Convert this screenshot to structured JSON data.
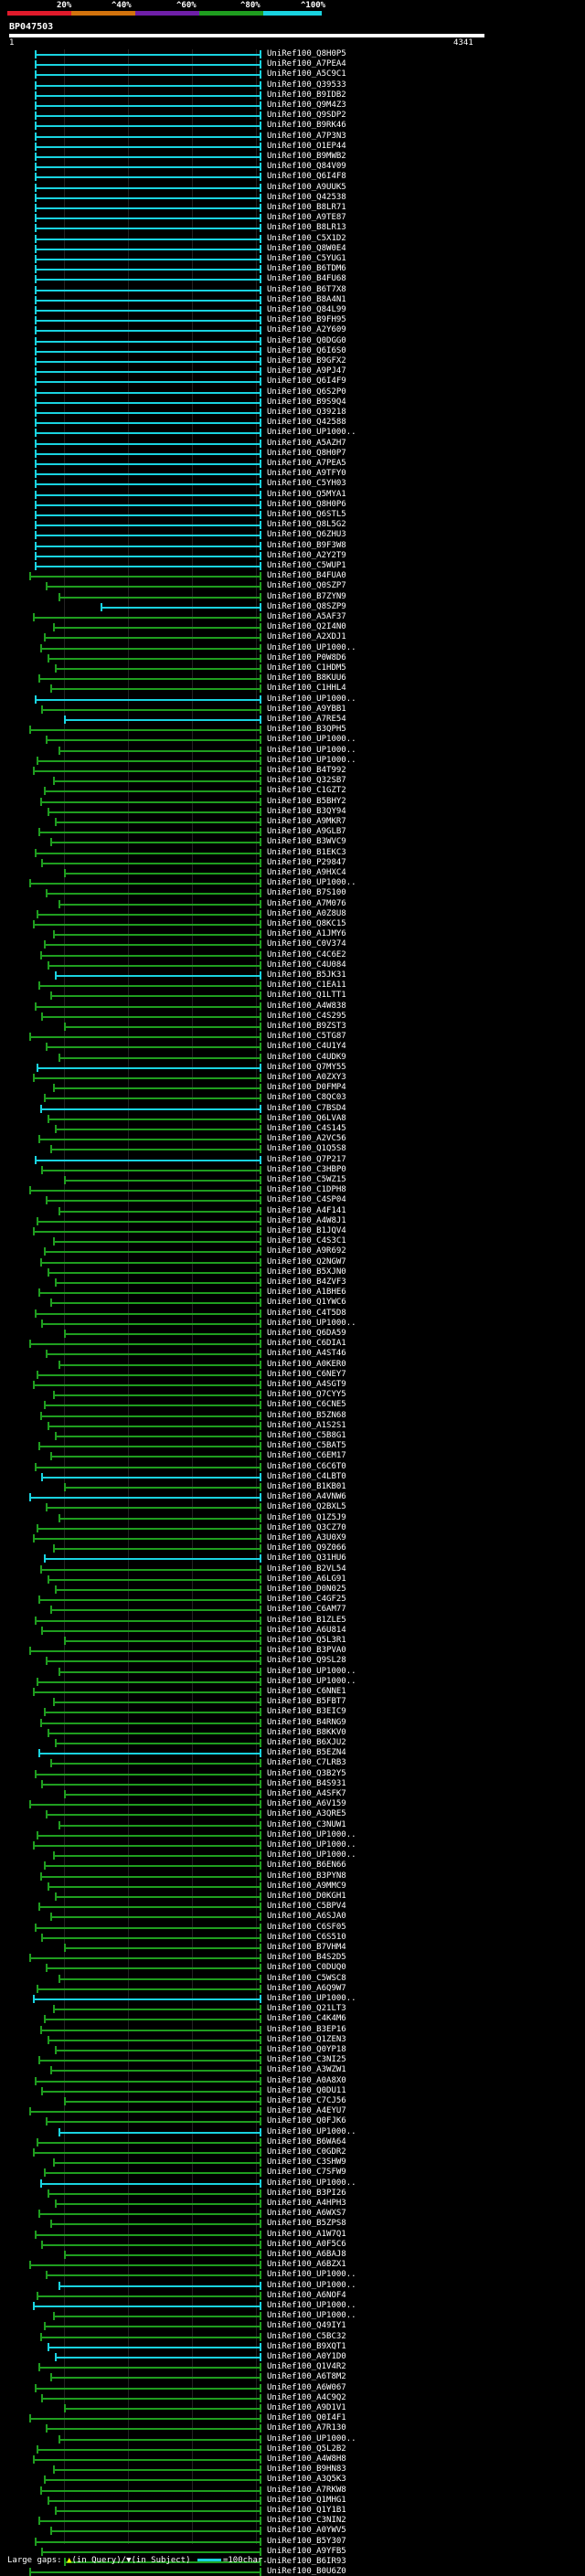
{
  "legend": {
    "labels": [
      "20%",
      "^40%",
      "^60%",
      "^80%",
      "^100%"
    ],
    "colors": [
      "#e01a2b",
      "#d2730d",
      "#6f1fa8",
      "#1f9e1f",
      "#19d3e0"
    ]
  },
  "query": {
    "id": "BP047503",
    "start": "1",
    "end": "4341"
  },
  "hits": [
    {
      "id": "UniRef100_Q8H0P5",
      "color": "#19d3e0"
    },
    {
      "id": "UniRef100_A7PEA4",
      "color": "#19d3e0"
    },
    {
      "id": "UniRef100_A5C9C1",
      "color": "#19d3e0"
    },
    {
      "id": "UniRef100_Q39533",
      "color": "#19d3e0"
    },
    {
      "id": "UniRef100_B9IDB2",
      "color": "#19d3e0"
    },
    {
      "id": "UniRef100_Q9M4Z3",
      "color": "#19d3e0"
    },
    {
      "id": "UniRef100_Q9SDP2",
      "color": "#19d3e0"
    },
    {
      "id": "UniRef100_B9RK46",
      "color": "#19d3e0"
    },
    {
      "id": "UniRef100_A7P3N3",
      "color": "#19d3e0"
    },
    {
      "id": "UniRef100_O1EP44",
      "color": "#19d3e0"
    },
    {
      "id": "UniRef100_B9MWB2",
      "color": "#19d3e0"
    },
    {
      "id": "UniRef100_Q84V09",
      "color": "#19d3e0"
    },
    {
      "id": "UniRef100_Q6I4F8",
      "color": "#19d3e0"
    },
    {
      "id": "UniRef100_A9UUK5",
      "color": "#19d3e0"
    },
    {
      "id": "UniRef100_Q42538",
      "color": "#19d3e0"
    },
    {
      "id": "UniRef100_B8LR71",
      "color": "#19d3e0"
    },
    {
      "id": "UniRef100_A9TE87",
      "color": "#19d3e0"
    },
    {
      "id": "UniRef100_B8LR13",
      "color": "#19d3e0"
    },
    {
      "id": "UniRef100_C5X1D2",
      "color": "#19d3e0"
    },
    {
      "id": "UniRef100_Q8W0E4",
      "color": "#19d3e0"
    },
    {
      "id": "UniRef100_C5YUG1",
      "color": "#19d3e0"
    },
    {
      "id": "UniRef100_B6TDM6",
      "color": "#19d3e0"
    },
    {
      "id": "UniRef100_B4FU68",
      "color": "#19d3e0"
    },
    {
      "id": "UniRef100_B6T7X8",
      "color": "#19d3e0"
    },
    {
      "id": "UniRef100_B8A4N1",
      "color": "#19d3e0"
    },
    {
      "id": "UniRef100_Q84L99",
      "color": "#19d3e0"
    },
    {
      "id": "UniRef100_B9FH95",
      "color": "#19d3e0"
    },
    {
      "id": "UniRef100_A2Y609",
      "color": "#19d3e0"
    },
    {
      "id": "UniRef100_Q0DGG0",
      "color": "#19d3e0"
    },
    {
      "id": "UniRef100_Q6I6S0",
      "color": "#19d3e0"
    },
    {
      "id": "UniRef100_B9GFX2",
      "color": "#19d3e0"
    },
    {
      "id": "UniRef100_A9PJ47",
      "color": "#19d3e0"
    },
    {
      "id": "UniRef100_Q6I4F9",
      "color": "#19d3e0"
    },
    {
      "id": "UniRef100_Q6S2P0",
      "color": "#19d3e0"
    },
    {
      "id": "UniRef100_B9S9Q4",
      "color": "#19d3e0"
    },
    {
      "id": "UniRef100_Q39218",
      "color": "#19d3e0"
    },
    {
      "id": "UniRef100_Q42588",
      "color": "#19d3e0"
    },
    {
      "id": "UniRef100_UP1000..",
      "color": "#19d3e0"
    },
    {
      "id": "UniRef100_A5AZH7",
      "color": "#19d3e0"
    },
    {
      "id": "UniRef100_Q8H0P7",
      "color": "#19d3e0"
    },
    {
      "id": "UniRef100_A7PEA5",
      "color": "#19d3e0"
    },
    {
      "id": "UniRef100_A9TFY0",
      "color": "#19d3e0"
    },
    {
      "id": "UniRef100_C5YH03",
      "color": "#19d3e0"
    },
    {
      "id": "UniRef100_Q5MYA1",
      "color": "#19d3e0"
    },
    {
      "id": "UniRef100_Q8H0P6",
      "color": "#19d3e0"
    },
    {
      "id": "UniRef100_Q6STL5",
      "color": "#19d3e0"
    },
    {
      "id": "UniRef100_Q8L5G2",
      "color": "#19d3e0"
    },
    {
      "id": "UniRef100_Q6ZHU3",
      "color": "#19d3e0"
    },
    {
      "id": "UniRef100_B9F3W8",
      "color": "#19d3e0"
    },
    {
      "id": "UniRef100_A2Y2T9",
      "color": "#19d3e0"
    },
    {
      "id": "UniRef100_C5WUP1",
      "color": "#19d3e0"
    },
    {
      "id": "UniRef100_B4FUA0",
      "color": "#1f9e1f"
    },
    {
      "id": "UniRef100_Q0SZP7",
      "color": "#1f9e1f"
    },
    {
      "id": "UniRef100_B7ZYN9",
      "color": "#1f9e1f"
    },
    {
      "id": "UniRef100_Q8SZP9",
      "color": "#19d3e0"
    },
    {
      "id": "UniRef100_A5AF37",
      "color": "#1f9e1f"
    },
    {
      "id": "UniRef100_Q2I4N0",
      "color": "#1f9e1f"
    },
    {
      "id": "UniRef100_A2XDJ1",
      "color": "#1f9e1f"
    },
    {
      "id": "UniRef100_UP1000..",
      "color": "#1f9e1f"
    },
    {
      "id": "UniRef100_P0W8D6",
      "color": "#1f9e1f"
    },
    {
      "id": "UniRef100_C1HDM5",
      "color": "#1f9e1f"
    },
    {
      "id": "UniRef100_B8KUU6",
      "color": "#1f9e1f"
    },
    {
      "id": "UniRef100_C1HHL4",
      "color": "#1f9e1f"
    },
    {
      "id": "UniRef100_UP1000..",
      "color": "#19d3e0"
    },
    {
      "id": "UniRef100_A9YBB1",
      "color": "#1f9e1f"
    },
    {
      "id": "UniRef100_A7RE54",
      "color": "#19d3e0"
    },
    {
      "id": "UniRef100_B3QPH5",
      "color": "#1f9e1f"
    },
    {
      "id": "UniRef100_UP1000..",
      "color": "#1f9e1f"
    },
    {
      "id": "UniRef100_UP1000..",
      "color": "#1f9e1f"
    },
    {
      "id": "UniRef100_UP1000..",
      "color": "#1f9e1f"
    },
    {
      "id": "UniRef100_B4T992",
      "color": "#1f9e1f"
    },
    {
      "id": "UniRef100_Q32SB7",
      "color": "#1f9e1f"
    },
    {
      "id": "UniRef100_C1GZT2",
      "color": "#1f9e1f"
    },
    {
      "id": "UniRef100_B5BHY2",
      "color": "#1f9e1f"
    },
    {
      "id": "UniRef100_B3QY94",
      "color": "#1f9e1f"
    },
    {
      "id": "UniRef100_A9MKR7",
      "color": "#1f9e1f"
    },
    {
      "id": "UniRef100_A9GLB7",
      "color": "#1f9e1f"
    },
    {
      "id": "UniRef100_B3WVC9",
      "color": "#1f9e1f"
    },
    {
      "id": "UniRef100_B1EKC3",
      "color": "#1f9e1f"
    },
    {
      "id": "UniRef100_P29847",
      "color": "#1f9e1f"
    },
    {
      "id": "UniRef100_A9HXC4",
      "color": "#1f9e1f"
    },
    {
      "id": "UniRef100_UP1000..",
      "color": "#1f9e1f"
    },
    {
      "id": "UniRef100_B7S100",
      "color": "#1f9e1f"
    },
    {
      "id": "UniRef100_A7M076",
      "color": "#1f9e1f"
    },
    {
      "id": "UniRef100_A0Z8U8",
      "color": "#1f9e1f"
    },
    {
      "id": "UniRef100_Q8KC15",
      "color": "#1f9e1f"
    },
    {
      "id": "UniRef100_A1JMY6",
      "color": "#1f9e1f"
    },
    {
      "id": "UniRef100_C0V374",
      "color": "#1f9e1f"
    },
    {
      "id": "UniRef100_C4C6E2",
      "color": "#1f9e1f"
    },
    {
      "id": "UniRef100_C4U084",
      "color": "#1f9e1f"
    },
    {
      "id": "UniRef100_B5JK31",
      "color": "#19d3e0"
    },
    {
      "id": "UniRef100_C1EA11",
      "color": "#1f9e1f"
    },
    {
      "id": "UniRef100_Q1LTT1",
      "color": "#1f9e1f"
    },
    {
      "id": "UniRef100_A4W838",
      "color": "#1f9e1f"
    },
    {
      "id": "UniRef100_C4S295",
      "color": "#1f9e1f"
    },
    {
      "id": "UniRef100_B9ZST3",
      "color": "#1f9e1f"
    },
    {
      "id": "UniRef100_C5TG87",
      "color": "#1f9e1f"
    },
    {
      "id": "UniRef100_C4U1Y4",
      "color": "#1f9e1f"
    },
    {
      "id": "UniRef100_C4UDK9",
      "color": "#1f9e1f"
    },
    {
      "id": "UniRef100_Q7MY55",
      "color": "#19d3e0"
    },
    {
      "id": "UniRef100_A0ZXY3",
      "color": "#1f9e1f"
    },
    {
      "id": "UniRef100_D0FMP4",
      "color": "#1f9e1f"
    },
    {
      "id": "UniRef100_C8QC03",
      "color": "#1f9e1f"
    },
    {
      "id": "UniRef100_C7BSD4",
      "color": "#19d3e0"
    },
    {
      "id": "UniRef100_Q6LVA8",
      "color": "#1f9e1f"
    },
    {
      "id": "UniRef100_C4S145",
      "color": "#1f9e1f"
    },
    {
      "id": "UniRef100_A2VC56",
      "color": "#1f9e1f"
    },
    {
      "id": "UniRef100_Q1Q5S8",
      "color": "#1f9e1f"
    },
    {
      "id": "UniRef100_Q7P217",
      "color": "#19d3e0"
    },
    {
      "id": "UniRef100_C3HBP0",
      "color": "#1f9e1f"
    },
    {
      "id": "UniRef100_C5WZ15",
      "color": "#1f9e1f"
    },
    {
      "id": "UniRef100_C1DPH8",
      "color": "#1f9e1f"
    },
    {
      "id": "UniRef100_C4SP04",
      "color": "#1f9e1f"
    },
    {
      "id": "UniRef100_A4F141",
      "color": "#1f9e1f"
    },
    {
      "id": "UniRef100_A4W8J1",
      "color": "#1f9e1f"
    },
    {
      "id": "UniRef100_B1JQV4",
      "color": "#1f9e1f"
    },
    {
      "id": "UniRef100_C4S3C1",
      "color": "#1f9e1f"
    },
    {
      "id": "UniRef100_A9R692",
      "color": "#1f9e1f"
    },
    {
      "id": "UniRef100_Q2NGW7",
      "color": "#1f9e1f"
    },
    {
      "id": "UniRef100_B5XJN0",
      "color": "#1f9e1f"
    },
    {
      "id": "UniRef100_B4ZVF3",
      "color": "#1f9e1f"
    },
    {
      "id": "UniRef100_A1BHE6",
      "color": "#1f9e1f"
    },
    {
      "id": "UniRef100_Q1YWC6",
      "color": "#1f9e1f"
    },
    {
      "id": "UniRef100_C4T5D8",
      "color": "#1f9e1f"
    },
    {
      "id": "UniRef100_UP1000..",
      "color": "#1f9e1f"
    },
    {
      "id": "UniRef100_Q6DA59",
      "color": "#1f9e1f"
    },
    {
      "id": "UniRef100_C6DIA1",
      "color": "#1f9e1f"
    },
    {
      "id": "UniRef100_A4ST46",
      "color": "#1f9e1f"
    },
    {
      "id": "UniRef100_A0KER0",
      "color": "#1f9e1f"
    },
    {
      "id": "UniRef100_C6NEY7",
      "color": "#1f9e1f"
    },
    {
      "id": "UniRef100_A4SGT9",
      "color": "#1f9e1f"
    },
    {
      "id": "UniRef100_Q7CYY5",
      "color": "#1f9e1f"
    },
    {
      "id": "UniRef100_C6CNE5",
      "color": "#1f9e1f"
    },
    {
      "id": "UniRef100_B5ZN68",
      "color": "#1f9e1f"
    },
    {
      "id": "UniRef100_A1S2S1",
      "color": "#1f9e1f"
    },
    {
      "id": "UniRef100_C5B8G1",
      "color": "#1f9e1f"
    },
    {
      "id": "UniRef100_C5BAT5",
      "color": "#1f9e1f"
    },
    {
      "id": "UniRef100_C6EM17",
      "color": "#1f9e1f"
    },
    {
      "id": "UniRef100_C6C6T0",
      "color": "#1f9e1f"
    },
    {
      "id": "UniRef100_C4LBT0",
      "color": "#19d3e0"
    },
    {
      "id": "UniRef100_B1KB01",
      "color": "#1f9e1f"
    },
    {
      "id": "UniRef100_A4VNW6",
      "color": "#19d3e0"
    },
    {
      "id": "UniRef100_Q2BXL5",
      "color": "#1f9e1f"
    },
    {
      "id": "UniRef100_Q1Z5J9",
      "color": "#1f9e1f"
    },
    {
      "id": "UniRef100_Q3CZ70",
      "color": "#1f9e1f"
    },
    {
      "id": "UniRef100_A3U0X9",
      "color": "#1f9e1f"
    },
    {
      "id": "UniRef100_Q9Z066",
      "color": "#1f9e1f"
    },
    {
      "id": "UniRef100_Q31HU6",
      "color": "#19d3e0"
    },
    {
      "id": "UniRef100_B2VL54",
      "color": "#1f9e1f"
    },
    {
      "id": "UniRef100_A6LG91",
      "color": "#1f9e1f"
    },
    {
      "id": "UniRef100_D0N025",
      "color": "#1f9e1f"
    },
    {
      "id": "UniRef100_C4GF25",
      "color": "#1f9e1f"
    },
    {
      "id": "UniRef100_C6AM77",
      "color": "#1f9e1f"
    },
    {
      "id": "UniRef100_B1ZLE5",
      "color": "#1f9e1f"
    },
    {
      "id": "UniRef100_A6U814",
      "color": "#1f9e1f"
    },
    {
      "id": "UniRef100_Q5L3R1",
      "color": "#1f9e1f"
    },
    {
      "id": "UniRef100_B3PVA0",
      "color": "#1f9e1f"
    },
    {
      "id": "UniRef100_Q9SL28",
      "color": "#1f9e1f"
    },
    {
      "id": "UniRef100_UP1000..",
      "color": "#1f9e1f"
    },
    {
      "id": "UniRef100_UP1000..",
      "color": "#1f9e1f"
    },
    {
      "id": "UniRef100_C6NNE1",
      "color": "#1f9e1f"
    },
    {
      "id": "UniRef100_B5FBT7",
      "color": "#1f9e1f"
    },
    {
      "id": "UniRef100_B3EIC9",
      "color": "#1f9e1f"
    },
    {
      "id": "UniRef100_B4RNG9",
      "color": "#1f9e1f"
    },
    {
      "id": "UniRef100_B8KKV0",
      "color": "#1f9e1f"
    },
    {
      "id": "UniRef100_B6XJU2",
      "color": "#1f9e1f"
    },
    {
      "id": "UniRef100_B5EZN4",
      "color": "#19d3e0"
    },
    {
      "id": "UniRef100_C7LRB3",
      "color": "#1f9e1f"
    },
    {
      "id": "UniRef100_Q3B2Y5",
      "color": "#1f9e1f"
    },
    {
      "id": "UniRef100_B4S931",
      "color": "#1f9e1f"
    },
    {
      "id": "UniRef100_A4SFK7",
      "color": "#1f9e1f"
    },
    {
      "id": "UniRef100_A6V159",
      "color": "#1f9e1f"
    },
    {
      "id": "UniRef100_A3QRE5",
      "color": "#1f9e1f"
    },
    {
      "id": "UniRef100_C3NUW1",
      "color": "#1f9e1f"
    },
    {
      "id": "UniRef100_UP1000..",
      "color": "#1f9e1f"
    },
    {
      "id": "UniRef100_UP1000..",
      "color": "#1f9e1f"
    },
    {
      "id": "UniRef100_UP1000..",
      "color": "#1f9e1f"
    },
    {
      "id": "UniRef100_B6EN66",
      "color": "#1f9e1f"
    },
    {
      "id": "UniRef100_B3PYN8",
      "color": "#1f9e1f"
    },
    {
      "id": "UniRef100_A9MMC9",
      "color": "#1f9e1f"
    },
    {
      "id": "UniRef100_D0KGH1",
      "color": "#1f9e1f"
    },
    {
      "id": "UniRef100_C5BPV4",
      "color": "#1f9e1f"
    },
    {
      "id": "UniRef100_A6SJA0",
      "color": "#1f9e1f"
    },
    {
      "id": "UniRef100_C6SF05",
      "color": "#1f9e1f"
    },
    {
      "id": "UniRef100_C6S510",
      "color": "#1f9e1f"
    },
    {
      "id": "UniRef100_B7VHM4",
      "color": "#1f9e1f"
    },
    {
      "id": "UniRef100_B4S2D5",
      "color": "#1f9e1f"
    },
    {
      "id": "UniRef100_C0DUQ0",
      "color": "#1f9e1f"
    },
    {
      "id": "UniRef100_C5WSC8",
      "color": "#1f9e1f"
    },
    {
      "id": "UniRef100_A6Q9W7",
      "color": "#1f9e1f"
    },
    {
      "id": "UniRef100_UP1000..",
      "color": "#19d3e0"
    },
    {
      "id": "UniRef100_Q21LT3",
      "color": "#1f9e1f"
    },
    {
      "id": "UniRef100_C4K4M6",
      "color": "#1f9e1f"
    },
    {
      "id": "UniRef100_B3EP16",
      "color": "#1f9e1f"
    },
    {
      "id": "UniRef100_Q1ZEN3",
      "color": "#1f9e1f"
    },
    {
      "id": "UniRef100_Q0YP18",
      "color": "#1f9e1f"
    },
    {
      "id": "UniRef100_C3NI25",
      "color": "#1f9e1f"
    },
    {
      "id": "UniRef100_A3WZW1",
      "color": "#1f9e1f"
    },
    {
      "id": "UniRef100_A0A8X0",
      "color": "#1f9e1f"
    },
    {
      "id": "UniRef100_Q0DU11",
      "color": "#1f9e1f"
    },
    {
      "id": "UniRef100_C7CJ56",
      "color": "#1f9e1f"
    },
    {
      "id": "UniRef100_A4EYU7",
      "color": "#1f9e1f"
    },
    {
      "id": "UniRef100_Q0FJK6",
      "color": "#1f9e1f"
    },
    {
      "id": "UniRef100_UP1000..",
      "color": "#19d3e0"
    },
    {
      "id": "UniRef100_B6WA64",
      "color": "#1f9e1f"
    },
    {
      "id": "UniRef100_C0GDR2",
      "color": "#1f9e1f"
    },
    {
      "id": "UniRef100_C3SHW9",
      "color": "#1f9e1f"
    },
    {
      "id": "UniRef100_C7SFW9",
      "color": "#1f9e1f"
    },
    {
      "id": "UniRef100_UP1000..",
      "color": "#19d3e0"
    },
    {
      "id": "UniRef100_B3PI26",
      "color": "#1f9e1f"
    },
    {
      "id": "UniRef100_A4HPH3",
      "color": "#1f9e1f"
    },
    {
      "id": "UniRef100_A6WXS7",
      "color": "#1f9e1f"
    },
    {
      "id": "UniRef100_B5ZPS8",
      "color": "#1f9e1f"
    },
    {
      "id": "UniRef100_A1W7Q1",
      "color": "#1f9e1f"
    },
    {
      "id": "UniRef100_A0F5C6",
      "color": "#1f9e1f"
    },
    {
      "id": "UniRef100_A6BAJ8",
      "color": "#1f9e1f"
    },
    {
      "id": "UniRef100_A6BZX1",
      "color": "#1f9e1f"
    },
    {
      "id": "UniRef100_UP1000..",
      "color": "#1f9e1f"
    },
    {
      "id": "UniRef100_UP1000..",
      "color": "#19d3e0"
    },
    {
      "id": "UniRef100_A6NOF4",
      "color": "#1f9e1f"
    },
    {
      "id": "UniRef100_UP1000..",
      "color": "#19d3e0"
    },
    {
      "id": "UniRef100_UP1000..",
      "color": "#1f9e1f"
    },
    {
      "id": "UniRef100_Q49IY1",
      "color": "#1f9e1f"
    },
    {
      "id": "UniRef100_C5BC32",
      "color": "#1f9e1f"
    },
    {
      "id": "UniRef100_B9XQT1",
      "color": "#19d3e0"
    },
    {
      "id": "UniRef100_A0Y1D0",
      "color": "#19d3e0"
    },
    {
      "id": "UniRef100_Q1V4R2",
      "color": "#1f9e1f"
    },
    {
      "id": "UniRef100_A6T8M2",
      "color": "#1f9e1f"
    },
    {
      "id": "UniRef100_A6W067",
      "color": "#1f9e1f"
    },
    {
      "id": "UniRef100_A4C9Q2",
      "color": "#1f9e1f"
    },
    {
      "id": "UniRef100_A9D1V1",
      "color": "#1f9e1f"
    },
    {
      "id": "UniRef100_Q0I4F1",
      "color": "#1f9e1f"
    },
    {
      "id": "UniRef100_A7R130",
      "color": "#1f9e1f"
    },
    {
      "id": "UniRef100_UP1000..",
      "color": "#1f9e1f"
    },
    {
      "id": "UniRef100_Q5L2B2",
      "color": "#1f9e1f"
    },
    {
      "id": "UniRef100_A4W8H8",
      "color": "#1f9e1f"
    },
    {
      "id": "UniRef100_B9HN83",
      "color": "#1f9e1f"
    },
    {
      "id": "UniRef100_A3Q5K3",
      "color": "#1f9e1f"
    },
    {
      "id": "UniRef100_A7RKW8",
      "color": "#1f9e1f"
    },
    {
      "id": "UniRef100_Q1MHG1",
      "color": "#1f9e1f"
    },
    {
      "id": "UniRef100_Q1Y1B1",
      "color": "#1f9e1f"
    },
    {
      "id": "UniRef100_C3NIN2",
      "color": "#1f9e1f"
    },
    {
      "id": "UniRef100_A0YWV5",
      "color": "#1f9e1f"
    },
    {
      "id": "UniRef100_B5Y307",
      "color": "#1f9e1f"
    },
    {
      "id": "UniRef100_A9YFB5",
      "color": "#1f9e1f"
    },
    {
      "id": "UniRef100_B6IR93",
      "color": "#1f9e1f"
    },
    {
      "id": "UniRef100_B0U6Z0",
      "color": "#1f9e1f"
    }
  ],
  "footer": {
    "large_gaps": "Large gaps:",
    "in_query": "(in Query)/",
    "in_subject": "(in Subject)",
    "scale": "=100char."
  }
}
